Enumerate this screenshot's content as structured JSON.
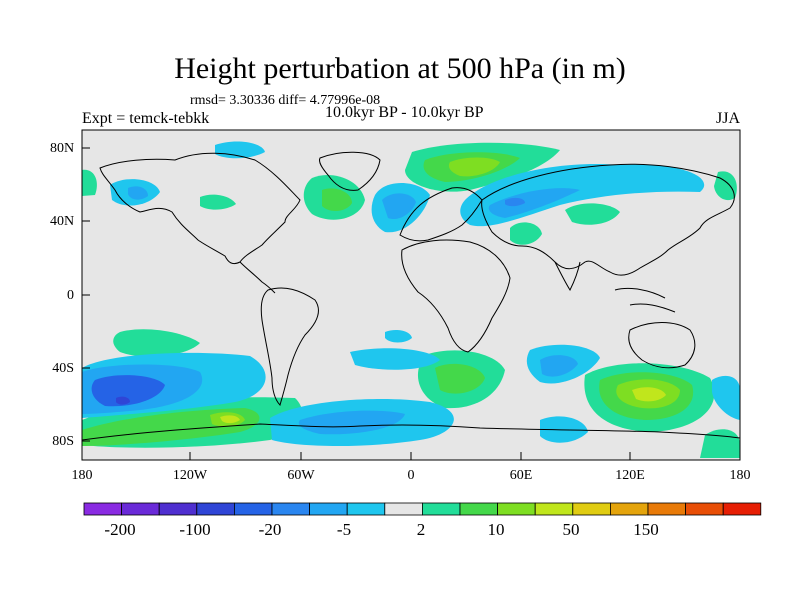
{
  "title": "Height perturbation at 500 hPa (in m)",
  "stats": "rmsd= 3.30336 diff= 4.77996e-08",
  "left_label": "Expt = temck-tebkk",
  "center_label": "10.0kyr BP - 10.0kyr BP",
  "right_label": "JJA",
  "lat_ticks": [
    "80N",
    "40N",
    "0",
    "40S",
    "80S"
  ],
  "lon_ticks": [
    "180",
    "120W",
    "60W",
    "0",
    "60E",
    "120E",
    "180"
  ],
  "colorbar": {
    "colors": [
      "#8a2be2",
      "#6a2ad8",
      "#4f2fd0",
      "#2f45d6",
      "#2563e6",
      "#2a86f0",
      "#22a6f2",
      "#1fc6ee",
      "#e6e6e6",
      "#22dd99",
      "#44d84a",
      "#7ede22",
      "#c0e61c",
      "#e0cc12",
      "#e4a40c",
      "#e87a08",
      "#e84e06",
      "#e61e04"
    ],
    "labels": [
      "-200",
      "-100",
      "-20",
      "-5",
      "2",
      "10",
      "50",
      "150"
    ]
  }
}
